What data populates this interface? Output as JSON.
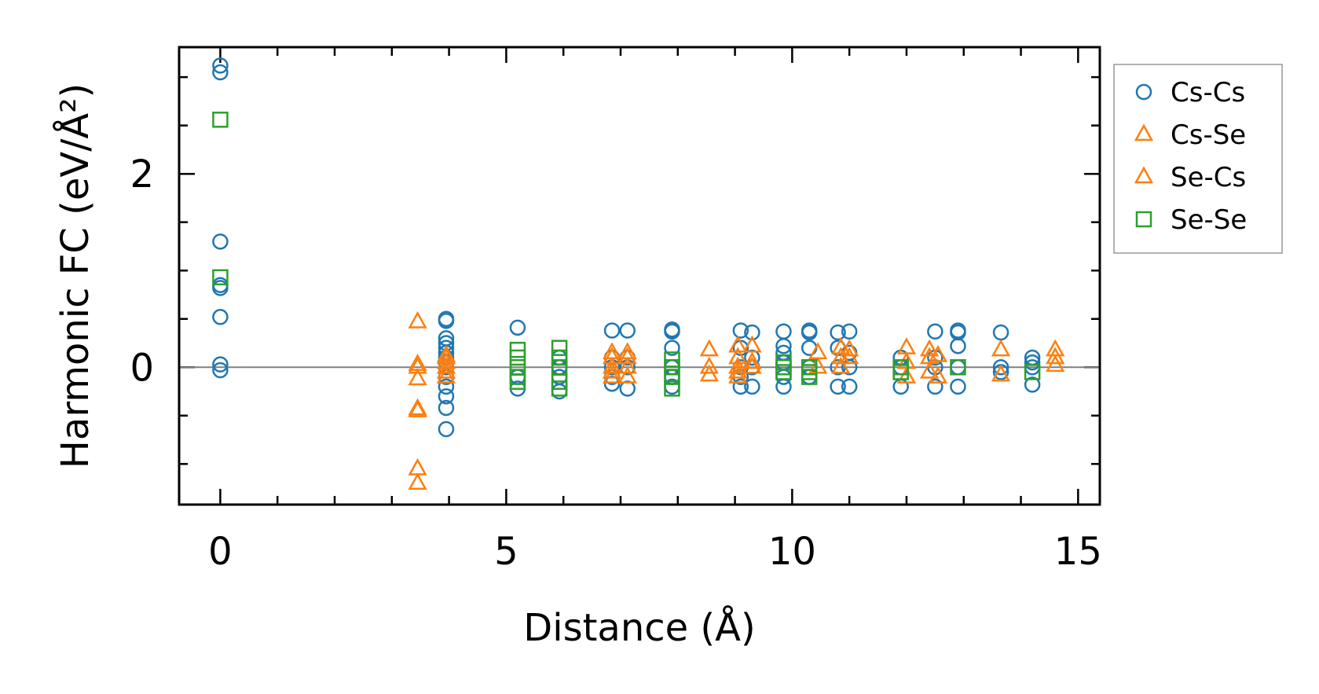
{
  "chart_data": {
    "type": "scatter",
    "xlabel": "Distance (Å)",
    "ylabel": "Harmonic FC (eV/Å²)",
    "xlim": [
      -0.72,
      15.38
    ],
    "ylim": [
      -1.42,
      3.31
    ],
    "xticks": [
      0,
      5,
      10,
      15
    ],
    "yticks": [
      0,
      2
    ],
    "xtick_labels": [
      "0",
      "5",
      "10",
      "15"
    ],
    "ytick_labels": [
      "0",
      "2"
    ],
    "xminor_step": 1,
    "yminor_step": 0.5,
    "zero_line": true,
    "grid": false,
    "legend_position": "outside right, top",
    "colors": {
      "cs_cs": "#1f77b4",
      "cs_se": "#ff7f0e",
      "se_cs": "#ff7f0e",
      "se_se": "#2ca02c",
      "zero_line": "#808080"
    },
    "series": [
      {
        "name": "Cs-Cs",
        "marker": "circle",
        "color": "#1f77b4",
        "x": [
          0,
          0,
          0,
          0,
          0,
          0,
          0,
          0,
          3.95,
          3.95,
          3.95,
          3.95,
          3.95,
          3.95,
          3.95,
          3.95,
          3.95,
          3.95,
          3.95,
          3.95,
          3.95,
          3.95,
          5.2,
          5.2,
          5.2,
          5.93,
          5.93,
          5.93,
          5.93,
          6.85,
          6.85,
          6.85,
          6.85,
          6.85,
          7.12,
          7.12,
          7.12,
          7.12,
          7.9,
          7.9,
          7.9,
          7.9,
          7.9,
          7.9,
          9.1,
          9.1,
          9.1,
          9.1,
          9.1,
          9.3,
          9.3,
          9.3,
          9.3,
          9.85,
          9.85,
          9.85,
          9.85,
          9.85,
          9.85,
          10.3,
          10.3,
          10.3,
          10.3,
          10.3,
          10.8,
          10.8,
          10.8,
          10.8,
          11.0,
          11.0,
          11.0,
          11.0,
          11.9,
          11.9,
          11.9,
          12.5,
          12.5,
          12.5,
          12.5,
          12.9,
          12.9,
          12.9,
          12.9,
          12.9,
          13.65,
          13.65,
          13.65,
          14.2,
          14.2,
          14.2,
          14.2
        ],
        "y": [
          3.12,
          3.05,
          1.3,
          0.85,
          0.82,
          0.52,
          0.03,
          -0.03,
          0.5,
          0.48,
          0.3,
          0.25,
          0.2,
          0.15,
          0.1,
          0.05,
          0.0,
          -0.1,
          -0.2,
          -0.3,
          -0.42,
          -0.64,
          0.41,
          -0.1,
          -0.22,
          0.1,
          0.0,
          -0.1,
          -0.25,
          0.38,
          0.1,
          0.0,
          -0.1,
          -0.17,
          0.38,
          0.1,
          0.0,
          -0.22,
          0.39,
          0.37,
          0.2,
          0.0,
          -0.1,
          -0.2,
          0.38,
          0.2,
          0.0,
          -0.1,
          -0.2,
          0.36,
          0.1,
          0.0,
          -0.2,
          0.37,
          0.22,
          0.15,
          0.05,
          -0.1,
          -0.2,
          0.38,
          0.36,
          0.2,
          0.0,
          -0.1,
          0.36,
          0.2,
          0.0,
          -0.2,
          0.37,
          0.15,
          0.0,
          -0.2,
          0.1,
          0.0,
          -0.2,
          0.37,
          0.1,
          0.0,
          -0.2,
          0.38,
          0.36,
          0.22,
          0.0,
          -0.2,
          0.36,
          0.0,
          -0.05,
          0.1,
          0.05,
          0.0,
          -0.18
        ]
      },
      {
        "name": "Cs-Se",
        "marker": "triangle",
        "color": "#ff7f0e",
        "x": [
          3.45,
          3.45,
          3.45,
          3.45,
          3.45,
          3.45,
          3.95,
          3.95,
          3.95,
          3.95,
          6.85,
          6.85,
          6.85,
          7.12,
          7.12,
          8.55,
          8.55,
          9.05,
          9.05,
          9.05,
          9.3,
          9.3,
          10.45,
          10.85,
          10.85,
          11.0,
          12.0,
          12.0,
          12.4,
          12.4,
          12.55,
          13.65,
          14.6,
          14.6
        ],
        "y": [
          0.47,
          0.03,
          -0.12,
          -0.43,
          -1.05,
          -1.2,
          0.12,
          0.05,
          0.0,
          -0.1,
          0.1,
          0.0,
          -0.1,
          0.15,
          0.0,
          0.18,
          -0.08,
          0.22,
          0.0,
          -0.1,
          0.22,
          0.0,
          0.15,
          0.2,
          0.0,
          0.18,
          0.2,
          -0.1,
          0.18,
          -0.05,
          0.12,
          0.18,
          0.18,
          0.02
        ]
      },
      {
        "name": "Se-Cs",
        "marker": "triangle",
        "color": "#ff7f0e",
        "x": [
          3.45,
          3.45,
          3.95,
          3.95,
          6.85,
          6.85,
          7.12,
          7.12,
          8.55,
          9.05,
          9.05,
          9.3,
          10.45,
          10.85,
          11.0,
          12.0,
          12.4,
          12.55,
          13.65,
          14.6
        ],
        "y": [
          -0.45,
          0.0,
          0.1,
          -0.05,
          0.15,
          -0.05,
          0.1,
          -0.1,
          0.0,
          0.1,
          -0.05,
          0.05,
          0.0,
          0.1,
          0.1,
          0.05,
          0.1,
          -0.1,
          -0.08,
          0.1
        ]
      },
      {
        "name": "Se-Se",
        "marker": "square",
        "color": "#2ca02c",
        "x": [
          0,
          0,
          5.2,
          5.2,
          5.2,
          5.2,
          5.2,
          5.93,
          5.93,
          5.93,
          5.93,
          5.93,
          7.9,
          7.9,
          7.9,
          7.9,
          9.85,
          9.85,
          9.85,
          10.3,
          10.3,
          10.3,
          11.9,
          11.9,
          12.9,
          14.2
        ],
        "y": [
          2.56,
          0.93,
          0.18,
          0.1,
          0.0,
          -0.1,
          -0.15,
          0.2,
          0.1,
          0.0,
          -0.15,
          -0.22,
          0.08,
          0.0,
          -0.1,
          -0.22,
          0.05,
          0.0,
          -0.05,
          0.0,
          -0.05,
          -0.1,
          0.0,
          -0.05,
          0.0,
          -0.05
        ]
      }
    ]
  }
}
